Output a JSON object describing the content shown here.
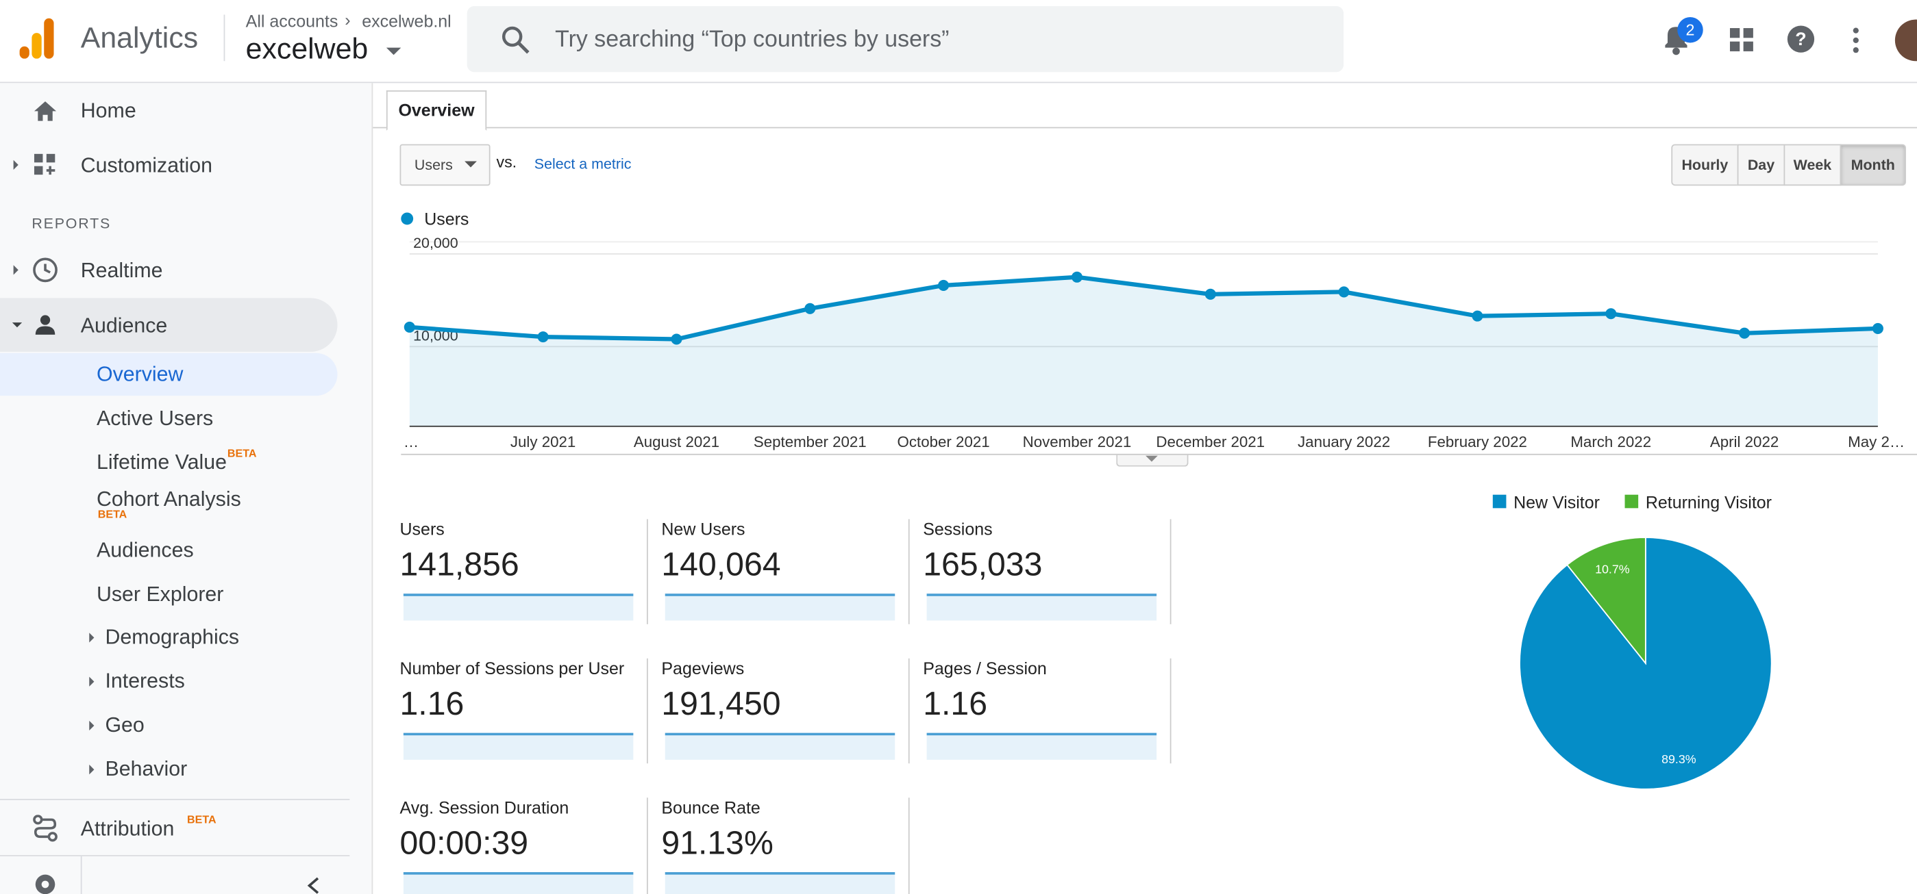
{
  "header": {
    "app_name": "Analytics",
    "breadcrumb_all": "All accounts",
    "breadcrumb_site": "excelweb.nl",
    "property": "excelweb",
    "search_placeholder": "Try searching “Top countries by users”",
    "notification_count": "2"
  },
  "sidebar": {
    "home": "Home",
    "customization": "Customization",
    "reports_label": "REPORTS",
    "realtime": "Realtime",
    "audience": "Audience",
    "audience_items": [
      "Overview",
      "Active Users",
      "Lifetime Value",
      "Cohort Analysis",
      "Audiences",
      "User Explorer",
      "Demographics",
      "Interests",
      "Geo",
      "Behavior"
    ],
    "beta": "BETA",
    "attribution": "Attribution"
  },
  "tab": "Overview",
  "controls": {
    "metric": "Users",
    "vs": "vs.",
    "select_metric": "Select a metric",
    "intervals": [
      "Hourly",
      "Day",
      "Week",
      "Month"
    ]
  },
  "chart_data": [
    {
      "type": "line",
      "categories": [
        "…",
        "July 2021",
        "August 2021",
        "September 2021",
        "October 2021",
        "November 2021",
        "December 2021",
        "January 2022",
        "February 2022",
        "March 2022",
        "April 2022",
        "May 2…"
      ],
      "series": [
        {
          "name": "Users",
          "color": "#058dc7",
          "values": [
            12100,
            11050,
            10800,
            14100,
            16600,
            17500,
            15650,
            15900,
            13300,
            13550,
            11450,
            11950
          ]
        }
      ],
      "ylim": [
        1400,
        21300
      ],
      "yticks": [
        {
          "value": 10000,
          "label": "10,000"
        },
        {
          "value": 20000,
          "label": "20,000"
        }
      ],
      "grid": true
    },
    {
      "type": "pie",
      "categories": [
        "New Visitor",
        "Returning Visitor"
      ],
      "values": [
        89.3,
        10.7
      ],
      "value_labels": [
        "89.3%",
        "10.7%"
      ],
      "colors": [
        "#058dc7",
        "#50b432"
      ]
    }
  ],
  "metrics": [
    {
      "label": "Users",
      "value": "141,856"
    },
    {
      "label": "New Users",
      "value": "140,064"
    },
    {
      "label": "Sessions",
      "value": "165,033"
    },
    {
      "label": "Number of Sessions per User",
      "value": "1.16"
    },
    {
      "label": "Pageviews",
      "value": "191,450"
    },
    {
      "label": "Pages / Session",
      "value": "1.16"
    },
    {
      "label": "Avg. Session Duration",
      "value": "00:00:39"
    },
    {
      "label": "Bounce Rate",
      "value": "91.13%"
    }
  ]
}
